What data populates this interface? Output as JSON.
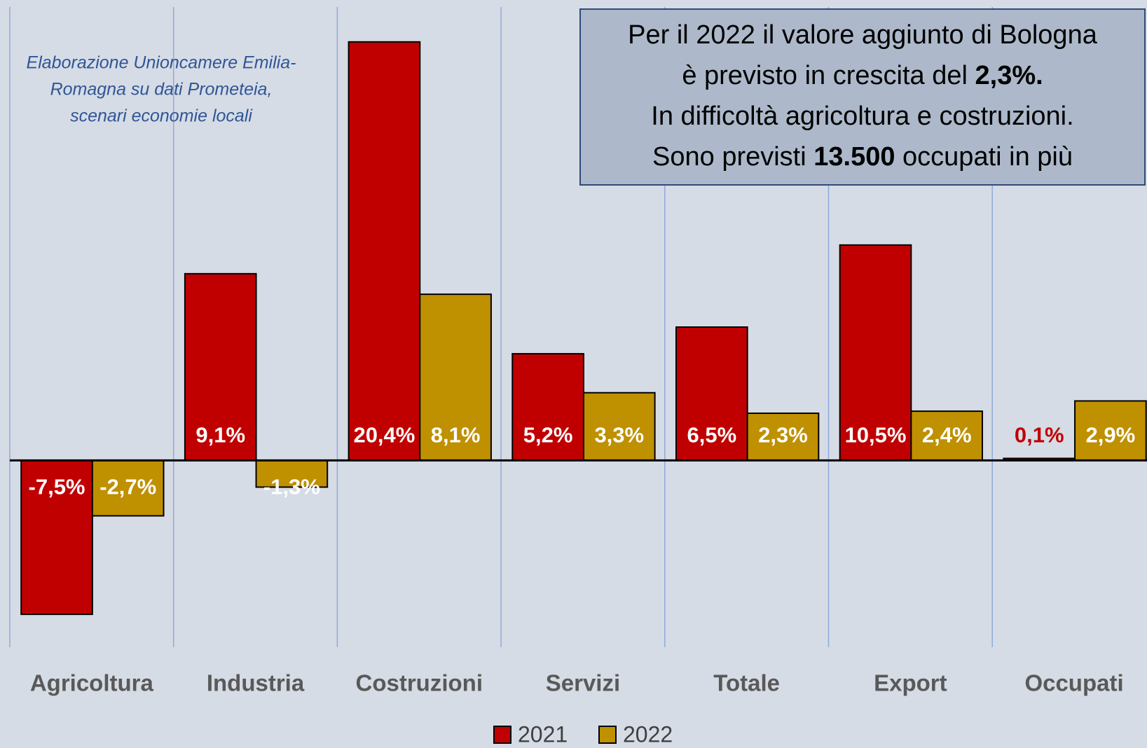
{
  "chart_data": {
    "type": "bar",
    "categories": [
      "Agricoltura",
      "Industria",
      "Costruzioni",
      "Servizi",
      "Totale",
      "Export",
      "Occupati"
    ],
    "series": [
      {
        "name": "2021",
        "color": "#c00000",
        "values": [
          -7.5,
          9.1,
          20.4,
          5.2,
          6.5,
          10.5,
          0.1
        ],
        "value_labels": [
          "-7,5%",
          "9,1%",
          "20,4%",
          "5,2%",
          "6,5%",
          "10,5%",
          "0,1%"
        ]
      },
      {
        "name": "2022",
        "color": "#bf9000",
        "values": [
          -2.7,
          -1.3,
          8.1,
          3.3,
          2.3,
          2.4,
          2.9
        ],
        "value_labels": [
          "-2,7%",
          "-1,3%",
          "8,1%",
          "3,3%",
          "2,3%",
          "2,4%",
          "2,9%"
        ]
      }
    ],
    "ylim": [
      -9.1,
      22.1
    ],
    "source_note": [
      "Elaborazione Unioncamere Emilia-",
      "Romagna su dati Prometeia,",
      "scenari economie locali"
    ],
    "annotation_lines": [
      [
        {
          "text": "Per il 2022 il valore aggiunto di Bologna",
          "bold": false
        }
      ],
      [
        {
          "text": "è previsto in crescita del ",
          "bold": false
        },
        {
          "text": "2,3%.",
          "bold": true
        }
      ],
      [
        {
          "text": "In difficoltà agricoltura e costruzioni.",
          "bold": false
        }
      ],
      [
        {
          "text": "Sono previsti ",
          "bold": false
        },
        {
          "text": "13.500",
          "bold": true
        },
        {
          "text": " occupati in più",
          "bold": false
        }
      ]
    ]
  }
}
